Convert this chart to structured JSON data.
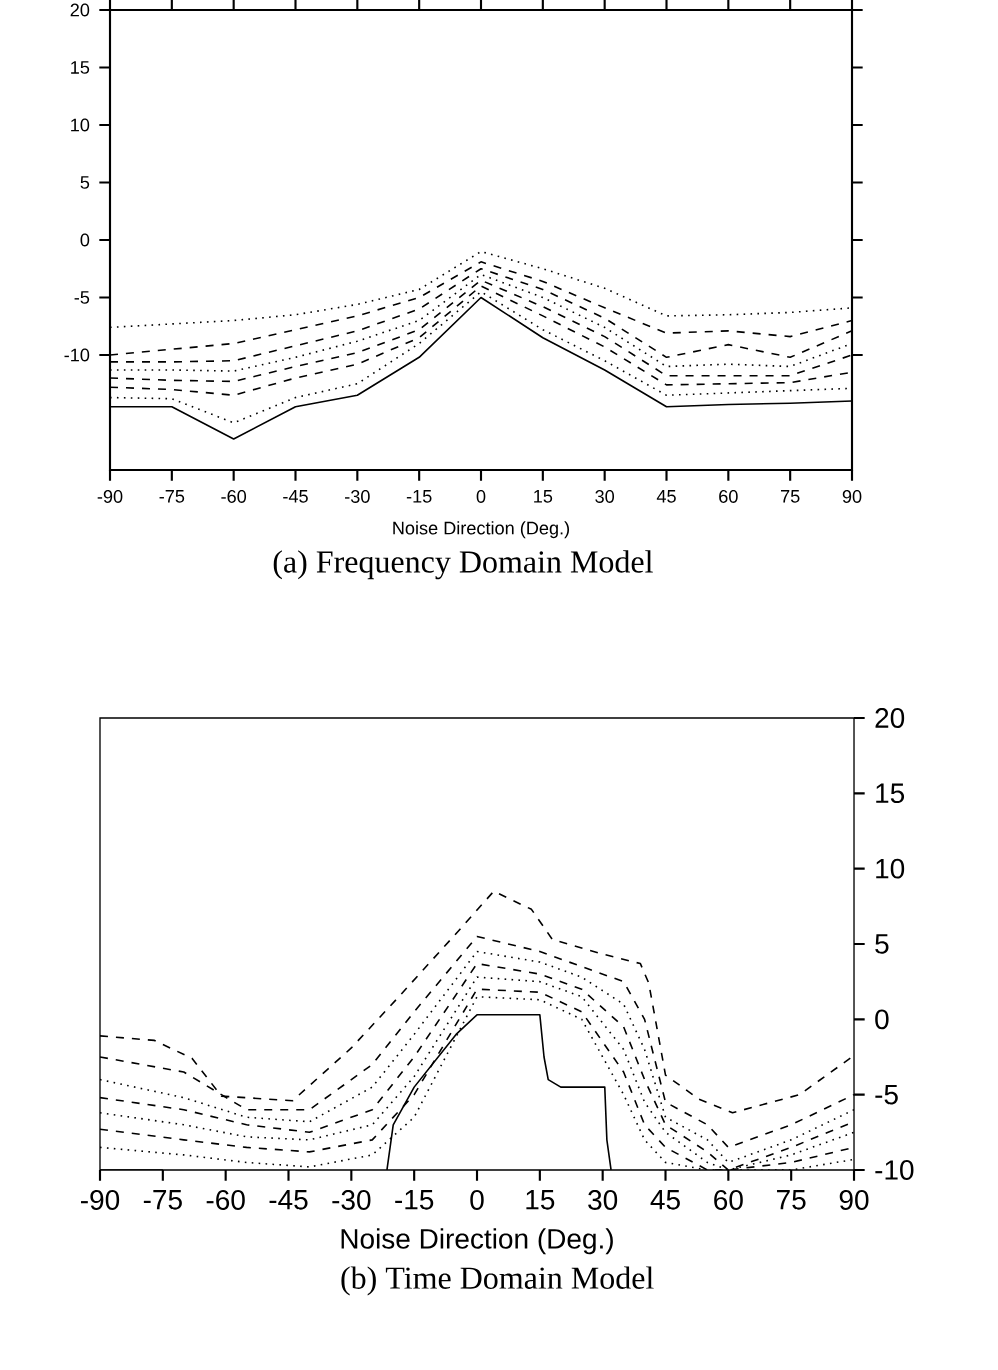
{
  "chart_data": [
    {
      "type": "line",
      "title": "(a) Frequency Domain Model",
      "xlabel": "Noise Direction (Deg.)",
      "xlim": [
        -90,
        90
      ],
      "ylim": [
        -20,
        20
      ],
      "xticks": [
        -90,
        -75,
        -60,
        -45,
        -30,
        -15,
        0,
        15,
        30,
        45,
        60,
        75,
        90
      ],
      "yticks": [
        -10,
        -5,
        0,
        5,
        10,
        15,
        20
      ],
      "x": [
        -90,
        -75,
        -60,
        -45,
        -30,
        -15,
        0,
        15,
        30,
        45,
        60,
        75,
        90
      ],
      "series": [
        {
          "color": "#000000",
          "line_style": "dotted",
          "values": [
            -7.6,
            -7.3,
            -7.0,
            -6.5,
            -5.6,
            -4.3,
            -1.0,
            -2.5,
            -4.2,
            -6.6,
            -6.5,
            -6.3,
            -5.9
          ]
        },
        {
          "color": "#000000",
          "line_style": "dashed",
          "values": [
            -10.0,
            -9.5,
            -9.0,
            -7.8,
            -6.6,
            -5.0,
            -1.9,
            -3.6,
            -5.9,
            -8.1,
            -7.9,
            -8.4,
            -7.0
          ]
        },
        {
          "color": "#000000",
          "line_style": "dashed",
          "values": [
            -10.6,
            -10.6,
            -10.5,
            -9.2,
            -7.9,
            -6.0,
            -2.5,
            -4.3,
            -6.8,
            -10.2,
            -9.1,
            -10.2,
            -7.9
          ]
        },
        {
          "color": "#000000",
          "line_style": "dotted",
          "values": [
            -11.3,
            -11.3,
            -11.4,
            -10.2,
            -8.8,
            -7.0,
            -3.0,
            -5.0,
            -7.6,
            -11.0,
            -10.8,
            -11.0,
            -9.0
          ]
        },
        {
          "color": "#000000",
          "line_style": "dashed",
          "values": [
            -12.0,
            -12.2,
            -12.3,
            -11.0,
            -9.8,
            -7.8,
            -3.5,
            -5.8,
            -8.4,
            -11.8,
            -11.8,
            -11.8,
            -10.0
          ]
        },
        {
          "color": "#000000",
          "line_style": "dashed",
          "values": [
            -12.8,
            -13.0,
            -13.5,
            -12.0,
            -10.8,
            -8.5,
            -4.0,
            -6.6,
            -9.3,
            -12.6,
            -12.5,
            -12.4,
            -11.5
          ]
        },
        {
          "color": "#000000",
          "line_style": "dotted",
          "values": [
            -13.7,
            -13.8,
            -15.9,
            -13.7,
            -12.5,
            -9.0,
            -4.5,
            -7.8,
            -10.5,
            -13.5,
            -13.3,
            -13.1,
            -12.9
          ]
        },
        {
          "color": "#000000",
          "line_style": "solid",
          "values": [
            -14.5,
            -14.5,
            -17.3,
            -14.5,
            -13.5,
            -10.2,
            -5.0,
            -8.5,
            -11.3,
            -14.5,
            -14.3,
            -14.2,
            -14.0
          ]
        }
      ]
    },
    {
      "type": "line",
      "title": "(b) Time Domain Model",
      "xlabel": "Noise Direction (Deg.)",
      "xlim": [
        -90,
        90
      ],
      "ylim": [
        -10,
        20
      ],
      "xticks": [
        -90,
        -75,
        -60,
        -45,
        -30,
        -15,
        0,
        15,
        30,
        45,
        60,
        75,
        90
      ],
      "yticks": [
        -10,
        -5,
        0,
        5,
        10,
        15,
        20
      ],
      "x": [
        -90,
        -70,
        -55,
        -40,
        -25,
        -15,
        0,
        15,
        25,
        35,
        40,
        45,
        55,
        60,
        75,
        90
      ],
      "series": [
        {
          "color": "#000000",
          "line_style": "dashed",
          "x": [
            -90,
            -77,
            -68,
            -61,
            -44,
            -30,
            -18,
            -4,
            4,
            13,
            18,
            29,
            39,
            41,
            45,
            53,
            61,
            77,
            90
          ],
          "values": [
            -1.1,
            -1.4,
            -2.6,
            -5.1,
            -5.4,
            -1.9,
            1.7,
            6.0,
            8.5,
            7.3,
            5.3,
            4.4,
            3.7,
            2.4,
            -3.7,
            -5.3,
            -6.2,
            -5.0,
            -2.4
          ]
        },
        {
          "color": "#000000",
          "line_style": "dashed",
          "values": [
            -2.5,
            -3.5,
            -6.0,
            -6.0,
            -3.0,
            0.5,
            5.5,
            4.5,
            3.5,
            2.5,
            0.0,
            -5.5,
            -7.0,
            -8.5,
            -7.0,
            -5.0
          ]
        },
        {
          "color": "#000000",
          "line_style": "dotted",
          "values": [
            -4.0,
            -5.2,
            -6.5,
            -6.8,
            -4.5,
            -1.0,
            4.5,
            3.8,
            2.8,
            1.0,
            -2.0,
            -6.5,
            -8.0,
            -9.5,
            -8.0,
            -6.0
          ]
        },
        {
          "color": "#000000",
          "line_style": "dashed",
          "values": [
            -5.2,
            -6.0,
            -7.0,
            -7.5,
            -6.0,
            -2.5,
            3.7,
            3.0,
            2.0,
            -0.5,
            -4.0,
            -7.0,
            -8.8,
            -10.0,
            -8.5,
            -6.8
          ]
        },
        {
          "color": "#000000",
          "line_style": "dotted",
          "values": [
            -6.2,
            -7.0,
            -7.8,
            -8.0,
            -7.0,
            -3.8,
            2.8,
            2.5,
            1.5,
            -2.0,
            -5.5,
            -7.5,
            -9.5,
            -10.0,
            -9.0,
            -7.5
          ]
        },
        {
          "color": "#000000",
          "line_style": "dashed",
          "values": [
            -7.3,
            -8.0,
            -8.5,
            -8.8,
            -8.0,
            -5.0,
            2.0,
            1.8,
            0.5,
            -3.5,
            -7.0,
            -8.5,
            -10.0,
            -10.0,
            -9.5,
            -8.5
          ]
        },
        {
          "color": "#000000",
          "line_style": "dotted",
          "values": [
            -8.5,
            -9.0,
            -9.5,
            -9.8,
            -9.0,
            -6.5,
            1.5,
            1.3,
            0.0,
            -5.0,
            -8.0,
            -9.5,
            -10.0,
            -10.0,
            -10.0,
            -9.3
          ]
        },
        {
          "color": "#000000",
          "line_style": "solid",
          "x": [
            -21.5,
            -20,
            -15,
            -5,
            0,
            15,
            16,
            17,
            20,
            30.5,
            31,
            32
          ],
          "values": [
            -10,
            -7,
            -4.5,
            -1,
            0.3,
            0.3,
            -2.5,
            -4,
            -4.5,
            -4.5,
            -8,
            -10
          ]
        },
        {
          "color": "#000000",
          "line_style": "solid",
          "x": [
            -90,
            -75
          ],
          "values": [
            -10,
            -10
          ]
        }
      ]
    }
  ]
}
